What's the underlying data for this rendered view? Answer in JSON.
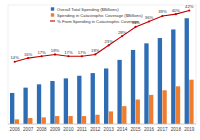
{
  "chart_data": {
    "type": "bar",
    "categories": [
      "2006",
      "2007",
      "2008",
      "2009",
      "2010",
      "2011",
      "2012",
      "2013",
      "2014",
      "2015",
      "2016",
      "2017",
      "2018",
      "2019"
    ],
    "series": [
      {
        "name": "Overall Total Spending ($Billions)",
        "color": "#2e6db4",
        "type": "bar",
        "values": [
          47,
          55,
          60,
          65,
          69,
          73,
          77,
          84,
          97,
          112,
          122,
          130,
          143,
          160
        ]
      },
      {
        "name": "Spending in Catastrophic Coverage ($Billions)",
        "color": "#ed7d31",
        "type": "bar",
        "values": [
          7,
          9,
          10,
          12,
          12,
          12,
          14,
          19,
          27,
          37,
          44,
          51,
          57,
          67
        ]
      },
      {
        "name": "% From Spending in Catastrophic Coverage",
        "color": "#c00000",
        "type": "line",
        "axis": "y2",
        "marker": "circle",
        "data_labels": true,
        "values": [
          14,
          16,
          17,
          18,
          17,
          17,
          18,
          23,
          28,
          33,
          36,
          39,
          40,
          42
        ],
        "value_labels": [
          "14%",
          "16%",
          "17%",
          "18%",
          "17%",
          "17%",
          "18%",
          "23%",
          "28%",
          "33%",
          "36%",
          "39%",
          "40%",
          "42%"
        ]
      }
    ],
    "ylim": [
      0,
      180
    ],
    "y2lim": [
      -20,
      45
    ],
    "legend": "top-left",
    "tick_labels": "x",
    "grid": false
  }
}
